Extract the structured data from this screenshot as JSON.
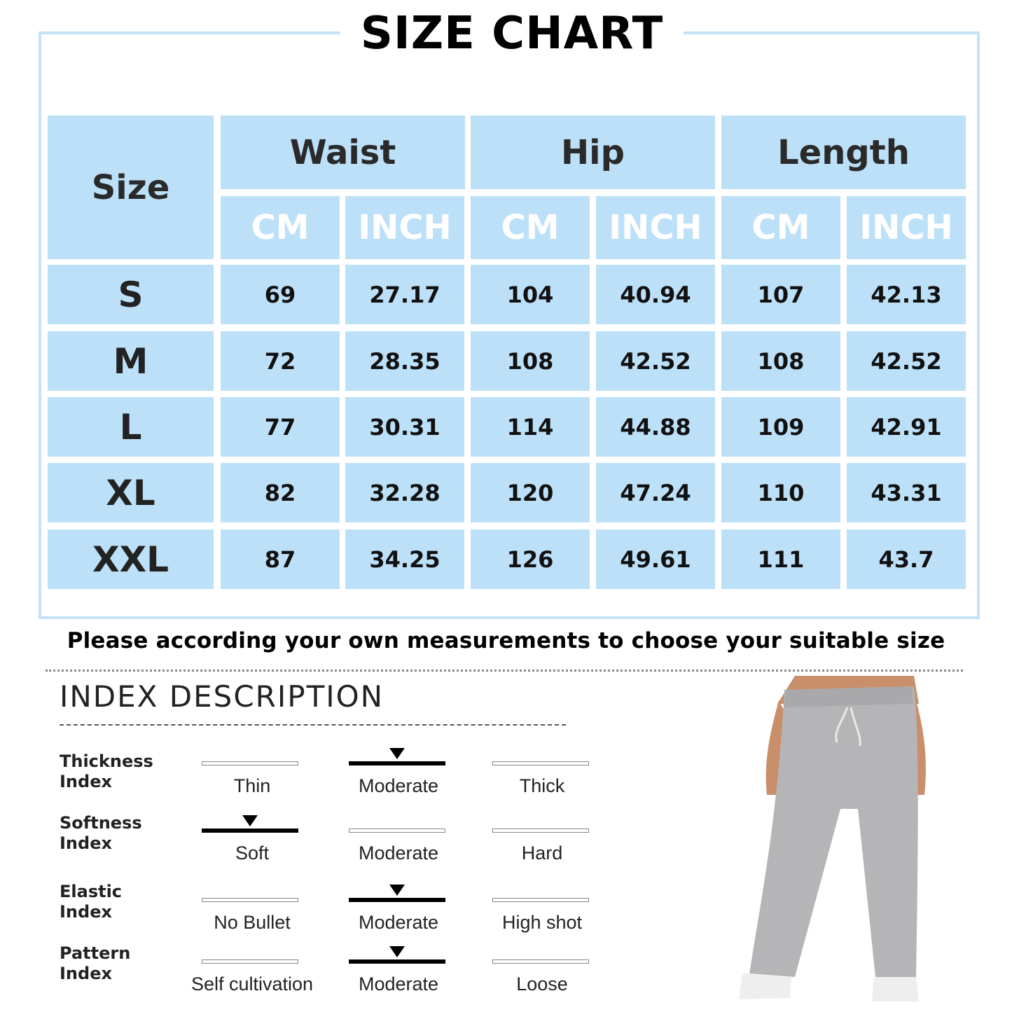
{
  "title": "SIZE CHART",
  "table": {
    "size_header": "Size",
    "groups": [
      "Waist",
      "Hip",
      "Length"
    ],
    "units": [
      "CM",
      "INCH",
      "CM",
      "INCH",
      "CM",
      "INCH"
    ],
    "rows": [
      {
        "size": "S",
        "values": [
          "69",
          "27.17",
          "104",
          "40.94",
          "107",
          "42.13"
        ]
      },
      {
        "size": "M",
        "values": [
          "72",
          "28.35",
          "108",
          "42.52",
          "108",
          "42.52"
        ]
      },
      {
        "size": "L",
        "values": [
          "77",
          "30.31",
          "114",
          "44.88",
          "109",
          "42.91"
        ]
      },
      {
        "size": "XL",
        "values": [
          "82",
          "32.28",
          "120",
          "47.24",
          "110",
          "43.31"
        ]
      },
      {
        "size": "XXL",
        "values": [
          "87",
          "34.25",
          "126",
          "49.61",
          "111",
          "43.7"
        ]
      }
    ]
  },
  "note": "Please according your own measurements to choose your suitable size",
  "index": {
    "title": "INDEX DESCRIPTION",
    "items": [
      {
        "label": "Thickness Index",
        "options": [
          "Thin",
          "Moderate",
          "Thick"
        ],
        "selected": 1
      },
      {
        "label": "Softness Index",
        "options": [
          "Soft",
          "Moderate",
          "Hard"
        ],
        "selected": 0
      },
      {
        "label": "Elastic Index",
        "options": [
          "No Bullet",
          "Moderate",
          "High shot"
        ],
        "selected": 1
      },
      {
        "label": "Pattern Index",
        "options": [
          "Self cultivation",
          "Moderate",
          "Loose"
        ],
        "selected": 1
      }
    ]
  },
  "colors": {
    "cell": "#bde0f9",
    "frame": "#c4e2f8",
    "pants": "#b5b5b7"
  }
}
